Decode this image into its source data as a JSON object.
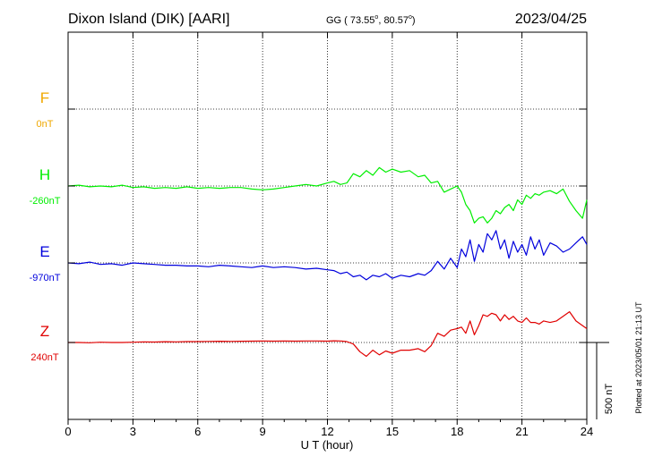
{
  "header": {
    "title": "Dixon Island (DIK)  [AARI]",
    "coords_prefix": "GG ( 73.55",
    "coords_lat_deg": "o",
    "coords_sep": ",  80.57",
    "coords_lon_deg": "o",
    "coords_suffix": ")",
    "date": "2023/04/25"
  },
  "plot_note": "Plotted at 2023/05/01 21:13 UT",
  "colors": {
    "F": "#f0a800",
    "H": "#00ee00",
    "E": "#0000dd",
    "Z": "#e00000",
    "grid": "#000000"
  },
  "chart_data": {
    "type": "line",
    "title": "Dixon Island (DIK)  [AARI]",
    "xlabel": "U T (hour)",
    "ylabel": "",
    "xlim": [
      0,
      24
    ],
    "x_ticks": [
      0,
      3,
      6,
      9,
      12,
      15,
      18,
      21,
      24
    ],
    "x_tick_labels": [
      "0",
      "3",
      "6",
      "9",
      "12",
      "15",
      "18",
      "21",
      "24"
    ],
    "grid": true,
    "scale_bar_nT": 500,
    "scale_bar_label": "500 nT",
    "components": [
      {
        "name": "F",
        "baseline_label": "0nT",
        "baseline_nT": 0,
        "has_data": false
      },
      {
        "name": "H",
        "baseline_label": "-260nT",
        "baseline_nT": -260,
        "has_data": true
      },
      {
        "name": "E",
        "baseline_label": "-970nT",
        "baseline_nT": -970,
        "has_data": true
      },
      {
        "name": "Z",
        "baseline_label": "240nT",
        "baseline_nT": 240,
        "has_data": true
      }
    ],
    "series": [
      {
        "name": "H",
        "x": [
          0,
          0.5,
          1,
          1.5,
          2,
          2.5,
          3,
          3.5,
          4,
          4.5,
          5,
          5.5,
          6,
          6.5,
          7,
          7.5,
          8,
          8.5,
          9,
          9.5,
          10,
          10.5,
          11,
          11.5,
          12,
          12.3,
          12.6,
          12.9,
          13.2,
          13.5,
          13.8,
          14.1,
          14.4,
          14.7,
          15,
          15.4,
          15.8,
          16.2,
          16.5,
          16.8,
          17.1,
          17.4,
          17.7,
          18,
          18.2,
          18.4,
          18.6,
          18.8,
          19,
          19.2,
          19.4,
          19.6,
          19.8,
          20,
          20.2,
          20.4,
          20.6,
          20.8,
          21,
          21.2,
          21.4,
          21.6,
          21.8,
          22,
          22.3,
          22.6,
          22.9,
          23.2,
          23.5,
          23.8,
          24
        ],
        "values": [
          -260,
          -255,
          -265,
          -260,
          -265,
          -255,
          -270,
          -265,
          -275,
          -270,
          -275,
          -265,
          -275,
          -270,
          -275,
          -270,
          -270,
          -280,
          -285,
          -280,
          -270,
          -260,
          -250,
          -260,
          -240,
          -230,
          -250,
          -240,
          -180,
          -200,
          -160,
          -190,
          -140,
          -170,
          -150,
          -170,
          -160,
          -200,
          -190,
          -240,
          -230,
          -300,
          -280,
          -260,
          -300,
          -380,
          -420,
          -500,
          -470,
          -460,
          -500,
          -470,
          -420,
          -440,
          -400,
          -380,
          -420,
          -350,
          -380,
          -320,
          -340,
          -310,
          -320,
          -300,
          -290,
          -310,
          -280,
          -360,
          -420,
          -470,
          -350
        ]
      },
      {
        "name": "E",
        "x": [
          0,
          0.5,
          1,
          1.5,
          2,
          2.5,
          3,
          3.5,
          4,
          4.5,
          5,
          5.5,
          6,
          6.5,
          7,
          7.5,
          8,
          8.5,
          9,
          9.5,
          10,
          10.5,
          11,
          11.5,
          12,
          12.3,
          12.6,
          12.9,
          13.2,
          13.5,
          13.8,
          14.1,
          14.4,
          14.7,
          15,
          15.4,
          15.8,
          16.2,
          16.5,
          16.8,
          17.1,
          17.4,
          17.7,
          18,
          18.2,
          18.4,
          18.6,
          18.8,
          19,
          19.2,
          19.4,
          19.6,
          19.8,
          20,
          20.2,
          20.4,
          20.6,
          20.8,
          21,
          21.2,
          21.4,
          21.6,
          21.8,
          22,
          22.3,
          22.6,
          22.9,
          23.2,
          23.5,
          23.8,
          24
        ],
        "values": [
          -970,
          -975,
          -965,
          -980,
          -975,
          -985,
          -970,
          -975,
          -980,
          -985,
          -985,
          -990,
          -990,
          -995,
          -985,
          -990,
          -995,
          -1000,
          -990,
          -1000,
          -995,
          -1000,
          -1010,
          -1005,
          -1015,
          -1020,
          -1040,
          -1030,
          -1060,
          -1050,
          -1080,
          -1050,
          -1060,
          -1040,
          -1070,
          -1050,
          -1060,
          -1040,
          -1050,
          -1020,
          -960,
          -1010,
          -940,
          -1000,
          -880,
          -930,
          -820,
          -960,
          -850,
          -900,
          -780,
          -820,
          -760,
          -880,
          -820,
          -940,
          -830,
          -900,
          -850,
          -920,
          -800,
          -880,
          -820,
          -920,
          -840,
          -860,
          -900,
          -880,
          -840,
          -800,
          -850
        ]
      },
      {
        "name": "Z",
        "x": [
          0,
          0.5,
          1,
          1.5,
          2,
          2.5,
          3,
          3.5,
          4,
          4.5,
          5,
          5.5,
          6,
          6.5,
          7,
          7.5,
          8,
          8.5,
          9,
          9.5,
          10,
          10.5,
          11,
          11.5,
          12,
          12.3,
          12.6,
          12.9,
          13.2,
          13.5,
          13.8,
          14.1,
          14.4,
          14.7,
          15,
          15.4,
          15.8,
          16.2,
          16.5,
          16.8,
          17.1,
          17.4,
          17.7,
          18,
          18.2,
          18.4,
          18.6,
          18.8,
          19,
          19.2,
          19.4,
          19.6,
          19.8,
          20,
          20.2,
          20.4,
          20.6,
          20.8,
          21,
          21.2,
          21.4,
          21.6,
          21.8,
          22,
          22.3,
          22.6,
          22.9,
          23.2,
          23.5,
          23.8,
          24
        ],
        "values": [
          240,
          240,
          238,
          242,
          240,
          240,
          242,
          244,
          243,
          245,
          244,
          246,
          246,
          247,
          248,
          247,
          248,
          249,
          250,
          249,
          250,
          249,
          250,
          250,
          249,
          251,
          250,
          246,
          230,
          180,
          150,
          190,
          160,
          185,
          170,
          190,
          190,
          200,
          180,
          220,
          300,
          280,
          320,
          330,
          340,
          300,
          380,
          290,
          350,
          420,
          410,
          430,
          420,
          380,
          420,
          390,
          410,
          380,
          370,
          400,
          370,
          370,
          360,
          380,
          370,
          380,
          410,
          440,
          380,
          350,
          330
        ]
      }
    ]
  }
}
